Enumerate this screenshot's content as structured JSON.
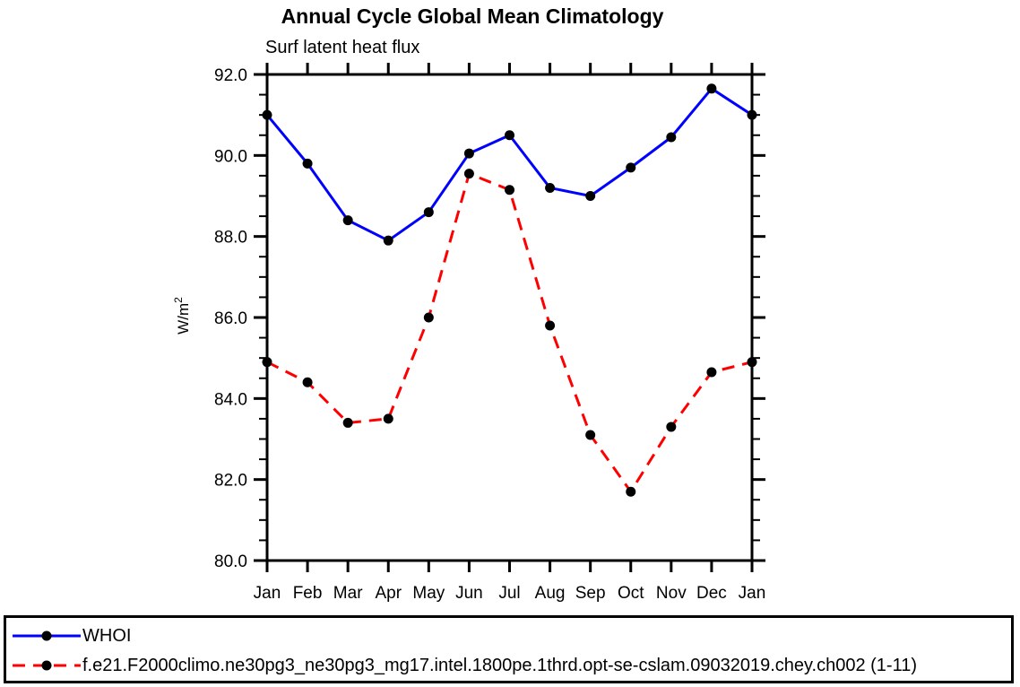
{
  "chart_data": {
    "type": "line",
    "title": "Annual Cycle Global Mean Climatology",
    "subtitle": "Surf latent heat flux",
    "ylabel": {
      "base": "W/m",
      "sup": "2"
    },
    "categories": [
      "Jan",
      "Feb",
      "Mar",
      "Apr",
      "May",
      "Jun",
      "Jul",
      "Aug",
      "Sep",
      "Oct",
      "Nov",
      "Dec",
      "Jan"
    ],
    "ylim": [
      80.0,
      92.0
    ],
    "ytick_step": 2.0,
    "yminor_step": 0.5,
    "ytick_format_decimals": 1,
    "grid": false,
    "axis_color": "#000000",
    "marker_color": "#000000",
    "legend_position": "bottom",
    "series": [
      {
        "name": "WHOI",
        "color": "#0000ff",
        "style": "solid",
        "values": [
          91.0,
          89.8,
          88.4,
          87.9,
          88.6,
          90.05,
          90.5,
          89.2,
          89.0,
          89.7,
          90.45,
          91.65,
          91.0
        ]
      },
      {
        "name": "f.e21.F2000climo.ne30pg3_ne30pg3_mg17.intel.1800pe.1thrd.opt-se-cslam.09032019.chey.ch002 (1-11)",
        "color": "#ff0000",
        "style": "dashed",
        "values": [
          84.9,
          84.4,
          83.4,
          83.5,
          86.0,
          89.55,
          89.15,
          85.8,
          83.1,
          81.7,
          83.3,
          84.65,
          84.9
        ]
      }
    ]
  }
}
